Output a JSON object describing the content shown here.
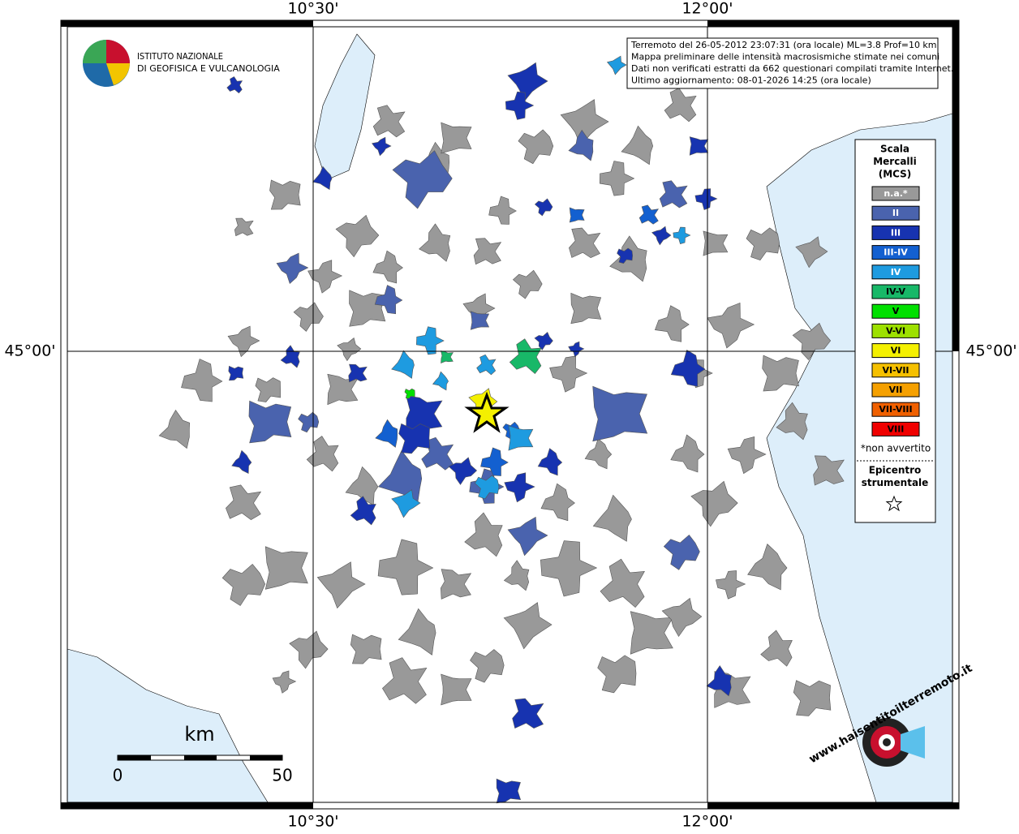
{
  "map": {
    "lon_labels": [
      "10°30'",
      "12°00'"
    ],
    "lat_label": "45°00'",
    "institute": [
      "ISTITUTO NAZIONALE",
      "DI GEOFISICA E VULCANOLOGIA"
    ],
    "info": [
      "Terremoto del 26-05-2012 23:07:31 (ora locale) ML=3.8 Prof=10 km",
      "Mappa preliminare delle intensità macrosismiche stimate nei comuni",
      "Dati non verificati estratti da 662 questionari compilati tramite Internet.",
      "Ultimo aggiornamento: 08-01-2026 14:25 (ora locale)"
    ],
    "legend": {
      "title": [
        "Scala",
        "Mercalli",
        "(MCS)"
      ],
      "items": [
        {
          "label": "n.a.*",
          "color": "#999999"
        },
        {
          "label": "II",
          "color": "#4a63ae"
        },
        {
          "label": "III",
          "color": "#1733b0"
        },
        {
          "label": "III-IV",
          "color": "#1360d0"
        },
        {
          "label": "IV",
          "color": "#1e9be0"
        },
        {
          "label": "IV-V",
          "color": "#18b868"
        },
        {
          "label": "V",
          "color": "#00e000"
        },
        {
          "label": "V-VI",
          "color": "#9de000"
        },
        {
          "label": "VI",
          "color": "#f4f000"
        },
        {
          "label": "VI-VII",
          "color": "#f5c000"
        },
        {
          "label": "VII",
          "color": "#f5a000"
        },
        {
          "label": "VII-VIII",
          "color": "#f06000"
        },
        {
          "label": "VIII",
          "color": "#f00000"
        }
      ],
      "note": "*non avvertito",
      "epicenter": [
        "Epicentro",
        "strumentale"
      ]
    },
    "scale": {
      "unit": "km",
      "start": "0",
      "end": "50"
    },
    "site": "www.haisentitoilterremoto.it"
  }
}
